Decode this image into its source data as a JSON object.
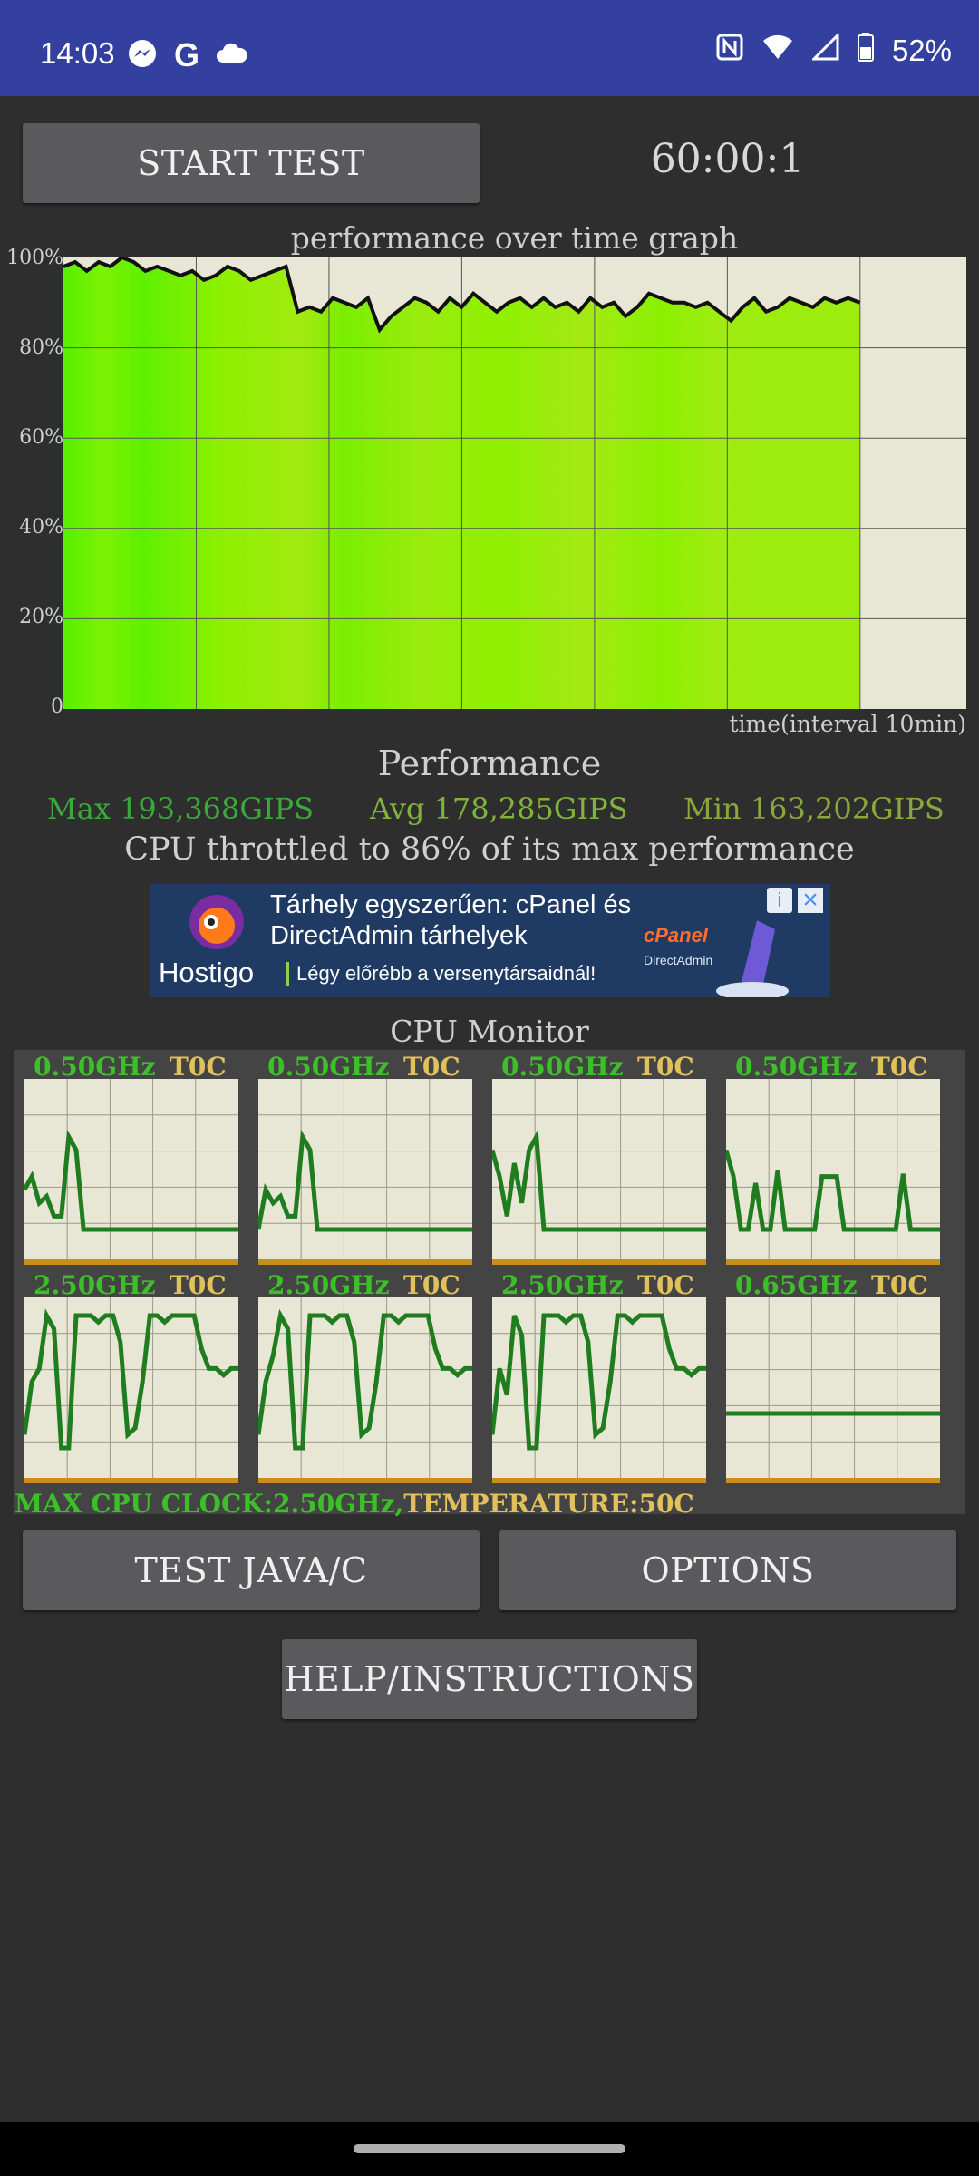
{
  "status_bar": {
    "time": "14:03",
    "battery": "52%",
    "icons": [
      "messenger-icon",
      "google-icon",
      "cloud-icon",
      "nfc-icon",
      "wifi-icon",
      "signal-icon",
      "battery-icon"
    ],
    "bg_color": "#3340a0"
  },
  "controls": {
    "start_label": "START TEST",
    "timer": "60:00:1",
    "test_label": "TEST JAVA/C",
    "options_label": "OPTIONS",
    "help_label": "HELP/INSTRUCTIONS"
  },
  "graph": {
    "title": "performance over time graph",
    "xlabel": "time(interval 10min)",
    "y_ticks": [
      "100%",
      "80%",
      "60%",
      "40%",
      "20%",
      "0"
    ]
  },
  "chart_data": {
    "type": "area",
    "title": "performance over time graph",
    "xlabel": "time(interval 10min)",
    "ylabel": "",
    "ylim": [
      0,
      100
    ],
    "xlim": [
      0,
      68
    ],
    "grid": true,
    "series": [
      {
        "values": [
          98,
          99,
          97,
          99,
          98,
          100,
          99,
          97,
          98,
          97,
          96,
          97,
          95,
          96,
          98,
          97,
          95,
          96,
          97,
          98,
          88,
          89,
          88,
          91,
          90,
          89,
          91,
          84,
          87,
          89,
          91,
          90,
          88,
          91,
          89,
          92,
          90,
          88,
          90,
          91,
          89,
          91,
          89,
          90,
          88,
          91,
          89,
          90,
          87,
          89,
          92,
          91,
          90,
          90,
          89,
          90,
          88,
          86,
          89,
          91,
          88,
          89,
          91,
          90,
          89,
          91,
          90,
          91,
          90
        ]
      }
    ]
  },
  "performance": {
    "title": "Performance",
    "max": "Max 193,368GIPS",
    "avg": "Avg 178,285GIPS",
    "min": "Min 163,202GIPS",
    "throttle": "CPU throttled to 86% of its max performance",
    "max_color": "#3aa83a",
    "avg_color": "#7fb33a",
    "min_color": "#8aa83a"
  },
  "ad": {
    "headline": "Tárhely egyszerűen: cPanel és DirectAdmin tárhelyek",
    "brand": "Hostigo",
    "subline": "Légy előrébb a versenytársaidnál!",
    "cpanel": "cPanel",
    "directadmin": "DirectAdmin"
  },
  "cpu_monitor": {
    "title": "CPU Monitor",
    "cores": [
      {
        "ghz": "0.50GHz",
        "temp": "T0C",
        "load": [
          0.3,
          0.4,
          0.2,
          0.25,
          0.1,
          0.1,
          0.7,
          0.6,
          0,
          0,
          0,
          0,
          0,
          0,
          0,
          0,
          0,
          0,
          0,
          0,
          0,
          0,
          0,
          0,
          0,
          0,
          0,
          0,
          0,
          0
        ]
      },
      {
        "ghz": "0.50GHz",
        "temp": "T0C",
        "load": [
          0,
          0.3,
          0.2,
          0.25,
          0.1,
          0.1,
          0.7,
          0.6,
          0,
          0,
          0,
          0,
          0,
          0,
          0,
          0,
          0,
          0,
          0,
          0,
          0,
          0,
          0,
          0,
          0,
          0,
          0,
          0,
          0,
          0
        ]
      },
      {
        "ghz": "0.50GHz",
        "temp": "T0C",
        "load": [
          0.6,
          0.4,
          0.1,
          0.5,
          0.2,
          0.6,
          0.7,
          0,
          0,
          0,
          0,
          0,
          0,
          0,
          0,
          0,
          0,
          0,
          0,
          0,
          0,
          0,
          0,
          0,
          0,
          0,
          0,
          0,
          0,
          0
        ]
      },
      {
        "ghz": "0.50GHz",
        "temp": "T0C",
        "load": [
          0.6,
          0.4,
          0,
          0,
          0.35,
          0,
          0,
          0.45,
          0,
          0,
          0,
          0,
          0,
          0.4,
          0.4,
          0.4,
          0,
          0,
          0,
          0,
          0,
          0,
          0,
          0,
          0.42,
          0,
          0,
          0,
          0,
          0
        ]
      },
      {
        "ghz": "2.50GHz",
        "temp": "T0C",
        "load": [
          0.1,
          0.5,
          0.6,
          1,
          0.9,
          0,
          0,
          1,
          1,
          1,
          0.95,
          1,
          1,
          0.8,
          0.1,
          0.15,
          0.5,
          1,
          1,
          0.95,
          1,
          1,
          1,
          1,
          0.75,
          0.6,
          0.6,
          0.55,
          0.6,
          0.6
        ]
      },
      {
        "ghz": "2.50GHz",
        "temp": "T0C",
        "load": [
          0.1,
          0.5,
          0.7,
          1,
          0.9,
          0,
          0,
          1,
          1,
          1,
          0.95,
          1,
          1,
          0.8,
          0.1,
          0.15,
          0.5,
          1,
          1,
          0.95,
          1,
          1,
          1,
          1,
          0.75,
          0.6,
          0.6,
          0.55,
          0.6,
          0.6
        ]
      },
      {
        "ghz": "2.50GHz",
        "temp": "T0C",
        "load": [
          0.1,
          0.6,
          0.4,
          1,
          0.85,
          0,
          0,
          1,
          1,
          1,
          0.95,
          1,
          1,
          0.8,
          0.1,
          0.15,
          0.5,
          1,
          1,
          0.95,
          1,
          1,
          1,
          1,
          0.75,
          0.6,
          0.6,
          0.55,
          0.6,
          0.6
        ]
      },
      {
        "ghz": "0.65GHz",
        "temp": "T0C",
        "load": [
          0.26,
          0.26,
          0.26,
          0.26,
          0.26,
          0.26,
          0.26,
          0.26,
          0.26,
          0.26,
          0.26,
          0.26,
          0.26,
          0.26,
          0.26,
          0.26,
          0.26,
          0.26,
          0.26,
          0.26,
          0.26,
          0.26,
          0.26,
          0.26,
          0.26,
          0.26,
          0.26,
          0.26,
          0.26,
          0.26
        ]
      }
    ],
    "max_clock": "MAX CPU CLOCK:2.50GHz,",
    "temperature": "TEMPERATURE:50C"
  }
}
